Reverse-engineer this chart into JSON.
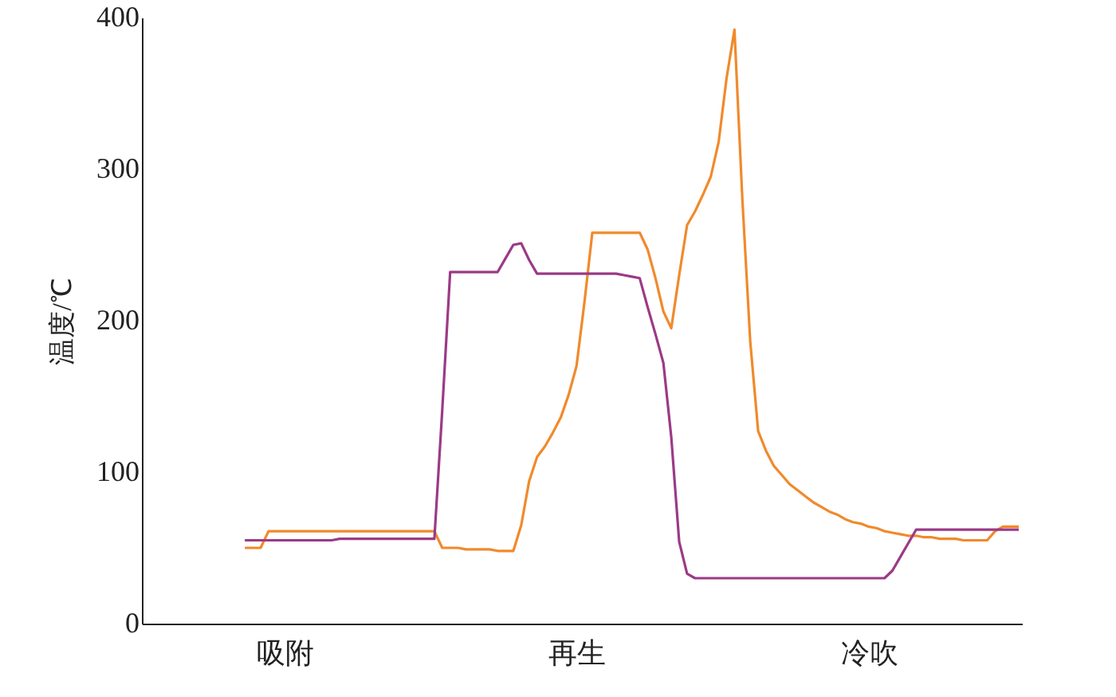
{
  "chart_data": {
    "type": "line",
    "ylabel": "温度/℃",
    "ylim": [
      0,
      400
    ],
    "yticks": [
      0,
      100,
      200,
      300,
      400
    ],
    "categories": [
      null,
      null,
      null,
      null,
      null,
      "吸附",
      null,
      null,
      null,
      null,
      null,
      null,
      null,
      null,
      null,
      null,
      null,
      null,
      null,
      null,
      null,
      null,
      null,
      null,
      null,
      null,
      null,
      null,
      null,
      null,
      null,
      null,
      null,
      null,
      null,
      null,
      null,
      null,
      null,
      null,
      null,
      null,
      "再生",
      null,
      null,
      null,
      null,
      null,
      null,
      null,
      null,
      null,
      null,
      null,
      null,
      null,
      null,
      null,
      null,
      null,
      null,
      null,
      null,
      null,
      null,
      null,
      null,
      null,
      null,
      null,
      null,
      null,
      null,
      null,
      null,
      null,
      null,
      null,
      null,
      "冷吹",
      null,
      null,
      null,
      null,
      null,
      null,
      null,
      null,
      null,
      null,
      null,
      null,
      null,
      null,
      null,
      null,
      null,
      null,
      null
    ],
    "grid": false,
    "line_style": "solid",
    "series": [
      {
        "color": "#f08a2c",
        "values": [
          50,
          50,
          50,
          61,
          61,
          61,
          61,
          61,
          61,
          61,
          61,
          61,
          61,
          61,
          61,
          61,
          61,
          61,
          61,
          61,
          61,
          61,
          61,
          61,
          61,
          50,
          50,
          50,
          49,
          49,
          49,
          49,
          48,
          48,
          48,
          65,
          94,
          110,
          117,
          126,
          136,
          151,
          170,
          212,
          258,
          258,
          258,
          258,
          258,
          258,
          258,
          247,
          228,
          206,
          195,
          230,
          263,
          272,
          283,
          295,
          318,
          360,
          392,
          280,
          186,
          127,
          114,
          104,
          98,
          92,
          88,
          84,
          80,
          77,
          74,
          72,
          69,
          67,
          66,
          64,
          63,
          61,
          60,
          59,
          58,
          58,
          57,
          57,
          56,
          56,
          56,
          55,
          55,
          55,
          55,
          61,
          64,
          64,
          64
        ]
      },
      {
        "color": "#9b3a86",
        "values": [
          55,
          55,
          55,
          55,
          55,
          55,
          55,
          55,
          55,
          55,
          55,
          55,
          56,
          56,
          56,
          56,
          56,
          56,
          56,
          56,
          56,
          56,
          56,
          56,
          56,
          141,
          232,
          232,
          232,
          232,
          232,
          232,
          232,
          241,
          250,
          251,
          240,
          231,
          231,
          231,
          231,
          231,
          231,
          231,
          231,
          231,
          231,
          231,
          230,
          229,
          228,
          209,
          191,
          172,
          123,
          54,
          33,
          30,
          30,
          30,
          30,
          30,
          30,
          30,
          30,
          30,
          30,
          30,
          30,
          30,
          30,
          30,
          30,
          30,
          30,
          30,
          30,
          30,
          30,
          30,
          30,
          30,
          35,
          44,
          53,
          62,
          62,
          62,
          62,
          62,
          62,
          62,
          62,
          62,
          62,
          62,
          62,
          62,
          62
        ]
      }
    ]
  }
}
